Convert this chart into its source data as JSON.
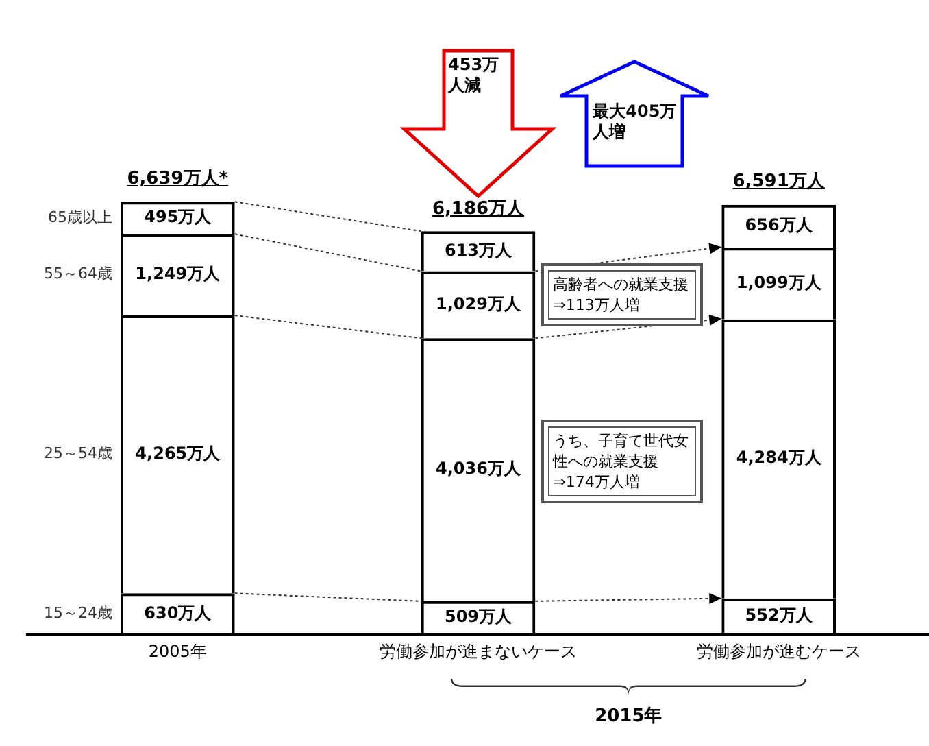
{
  "chart_data": {
    "type": "bar",
    "stacked": true,
    "categories": [
      "2005年",
      "労働参加が進まないケース",
      "労働参加が進むケース"
    ],
    "series": [
      {
        "name": "15～24歳",
        "color": "#000000",
        "values": [
          630,
          509,
          552
        ],
        "value_labels": [
          "630万人",
          "509万人",
          "552万人"
        ]
      },
      {
        "name": "25～54歳",
        "color": "#000000",
        "values": [
          4265,
          4036,
          4284
        ],
        "value_labels": [
          "4,265万人",
          "4,036万人",
          "4,284万人"
        ]
      },
      {
        "name": "55～64歳",
        "color": "#000000",
        "values": [
          1249,
          1029,
          1099
        ],
        "value_labels": [
          "1,249万人",
          "1,029万人",
          "1,099万人"
        ]
      },
      {
        "name": "65歳以上",
        "color": "#000000",
        "values": [
          495,
          613,
          656
        ],
        "value_labels": [
          "495万人",
          "613万人",
          "656万人"
        ]
      }
    ],
    "totals": [
      "6,639万人*",
      "6,186万人",
      "6,591万人"
    ],
    "annotations": [
      "453万人減",
      "最大405万人増",
      "高齢者への就業支援⇒113万人増",
      "うち、子育て世代女性への就業支援⇒174万人増",
      "2015年"
    ]
  }
}
